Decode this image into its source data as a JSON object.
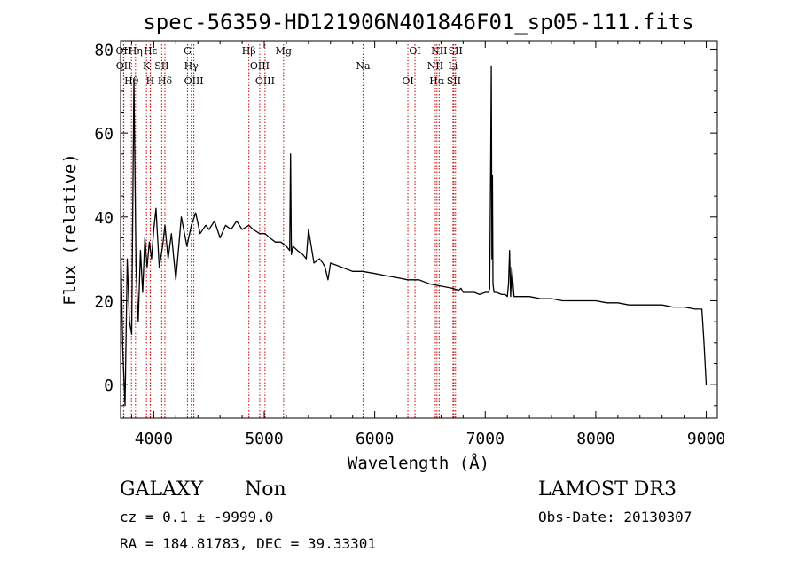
{
  "chart_data": {
    "type": "line",
    "title": "spec-56359-HD121906N401846F01_sp05-111.fits",
    "xlabel": "Wavelength (Å)",
    "ylabel": "Flux (relative)",
    "xlim": [
      3700,
      9100
    ],
    "ylim": [
      -8,
      82
    ],
    "xticks": [
      4000,
      5000,
      6000,
      7000,
      8000,
      9000
    ],
    "yticks": [
      0,
      20,
      40,
      60,
      80
    ],
    "series": [
      {
        "name": "spectrum",
        "x": [
          3700,
          3720,
          3740,
          3760,
          3780,
          3800,
          3820,
          3840,
          3860,
          3880,
          3900,
          3920,
          3940,
          3960,
          3980,
          4000,
          4020,
          4050,
          4080,
          4101,
          4130,
          4160,
          4200,
          4250,
          4300,
          4340,
          4380,
          4420,
          4470,
          4500,
          4550,
          4600,
          4650,
          4700,
          4750,
          4800,
          4861,
          4900,
          4959,
          5007,
          5050,
          5100,
          5150,
          5200,
          5230,
          5238,
          5245,
          5260,
          5300,
          5350,
          5380,
          5400,
          5450,
          5500,
          5530,
          5550,
          5577,
          5600,
          5700,
          5800,
          5890,
          6000,
          6100,
          6200,
          6300,
          6400,
          6500,
          6600,
          6700,
          6760,
          6780,
          6800,
          6850,
          6900,
          6950,
          7000,
          7030,
          7040,
          7050,
          7055,
          7060,
          7065,
          7070,
          7080,
          7090,
          7100,
          7150,
          7180,
          7200,
          7210,
          7220,
          7230,
          7240,
          7260,
          7300,
          7400,
          7500,
          7600,
          7700,
          7800,
          7900,
          8000,
          8100,
          8200,
          8300,
          8400,
          8500,
          8600,
          8700,
          8800,
          8900,
          8960,
          8980,
          9000
        ],
        "y": [
          35,
          8,
          -5,
          30,
          15,
          12,
          73,
          28,
          15,
          32,
          22,
          35,
          28,
          34,
          30,
          37,
          42,
          28,
          33,
          38,
          30,
          36,
          25,
          40,
          33,
          38,
          41,
          36,
          38,
          37,
          39,
          35,
          38,
          37,
          39,
          37,
          38,
          37,
          36,
          36,
          35,
          34,
          34,
          33,
          32,
          55,
          31,
          33,
          32,
          31,
          30,
          37,
          29,
          30,
          29,
          28,
          25,
          29,
          28,
          27,
          27,
          26.5,
          26,
          25.5,
          25,
          25,
          24,
          23.5,
          23,
          22.5,
          23,
          22,
          22,
          22,
          21.5,
          22,
          22,
          23,
          55,
          76,
          30,
          50,
          24,
          22,
          22,
          22,
          21.5,
          21.5,
          21,
          24,
          32,
          21,
          28,
          21,
          21,
          21,
          20.5,
          20.5,
          20,
          20,
          20,
          20,
          19.5,
          19.5,
          19,
          19,
          19,
          19,
          18.5,
          18.5,
          18,
          18,
          10,
          0
        ]
      }
    ],
    "lines": [
      {
        "label": "OII",
        "wavelength": 3727
      },
      {
        "label": "OII",
        "wavelength": 3729
      },
      {
        "label": "Hθ",
        "wavelength": 3798
      },
      {
        "label": "Hη",
        "wavelength": 3835
      },
      {
        "label": "K",
        "wavelength": 3934
      },
      {
        "label": "H",
        "wavelength": 3968
      },
      {
        "label": "Hε",
        "wavelength": 3970
      },
      {
        "label": "SII",
        "wavelength": 4072
      },
      {
        "label": "Hδ",
        "wavelength": 4101
      },
      {
        "label": "G",
        "wavelength": 4305
      },
      {
        "label": "Hγ",
        "wavelength": 4340
      },
      {
        "label": "OIII",
        "wavelength": 4363
      },
      {
        "label": "Hβ",
        "wavelength": 4861
      },
      {
        "label": "OIII",
        "wavelength": 4959
      },
      {
        "label": "OIII",
        "wavelength": 5007
      },
      {
        "label": "Mg",
        "wavelength": 5175
      },
      {
        "label": "Na",
        "wavelength": 5894
      },
      {
        "label": "OI",
        "wavelength": 6300
      },
      {
        "label": "OI",
        "wavelength": 6364
      },
      {
        "label": "NII",
        "wavelength": 6548
      },
      {
        "label": "Hα",
        "wavelength": 6563
      },
      {
        "label": "NII",
        "wavelength": 6583
      },
      {
        "label": "Li",
        "wavelength": 6708
      },
      {
        "label": "SII",
        "wavelength": 6716
      },
      {
        "label": "SII",
        "wavelength": 6731
      }
    ],
    "annotations": {
      "class_label": "GALAXY",
      "subclass": "Non",
      "cz": "cz = 0.1 ± -9999.0",
      "radec": "RA = 184.81783, DEC =  39.33301",
      "survey": "LAMOST DR3",
      "obs_date": "Obs-Date: 20130307"
    }
  },
  "colors": {
    "line_marker": "#cc0000",
    "spectrum": "#000000",
    "axes": "#000000"
  }
}
